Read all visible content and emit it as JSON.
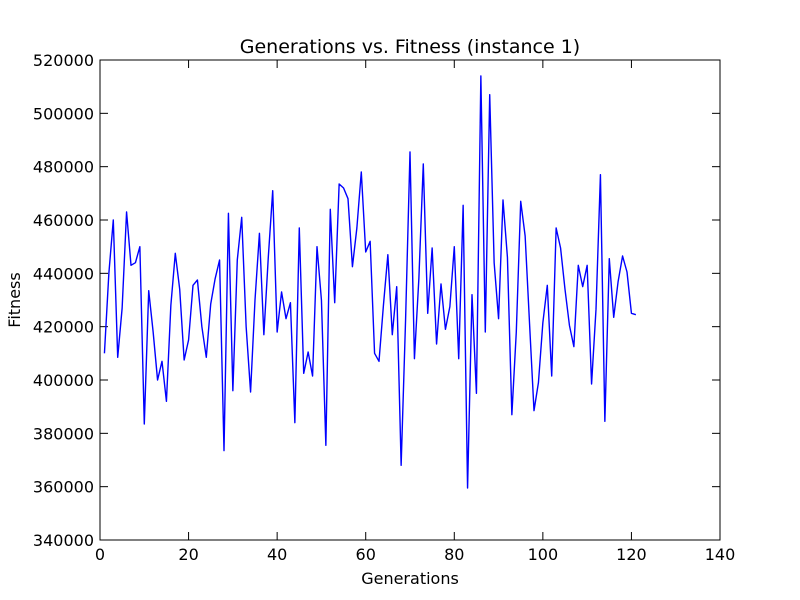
{
  "chart_data": {
    "type": "line",
    "title": "Generations vs. Fitness (instance 1)",
    "xlabel": "Generations",
    "ylabel": "Fitness",
    "xlim": [
      0,
      140
    ],
    "ylim": [
      340000,
      520000
    ],
    "xticks": [
      0,
      20,
      40,
      60,
      80,
      100,
      120,
      140
    ],
    "yticks": [
      340000,
      360000,
      380000,
      400000,
      420000,
      440000,
      460000,
      480000,
      500000,
      520000
    ],
    "grid": false,
    "legend": "none",
    "line_color": "#0000ff",
    "series": [
      {
        "x": [
          1,
          2,
          3,
          4,
          5,
          6,
          7,
          8,
          9,
          10,
          11,
          12,
          13,
          14,
          15,
          16,
          17,
          18,
          19,
          20,
          21,
          22,
          23,
          24,
          25,
          26,
          27,
          28,
          29,
          30,
          31,
          32,
          33,
          34,
          35,
          36,
          37,
          38,
          39,
          40,
          41,
          42,
          43,
          44,
          45,
          46,
          47,
          48,
          49,
          50,
          51,
          52,
          53,
          54,
          55,
          56,
          57,
          58,
          59,
          60,
          61,
          62,
          63,
          64,
          65,
          66,
          67,
          68,
          69,
          70,
          71,
          72,
          73,
          74,
          75,
          76,
          77,
          78,
          79,
          80,
          81,
          82,
          83,
          84,
          85,
          86,
          87,
          88,
          89,
          90,
          91,
          92,
          93,
          94,
          95,
          96,
          97,
          98,
          99,
          100,
          101,
          102,
          103,
          104,
          105,
          106,
          107,
          108,
          109,
          110,
          111,
          112,
          113,
          114,
          115,
          116,
          117,
          118,
          119,
          120,
          121
        ],
        "y": [
          410000,
          440000,
          460000,
          408500,
          427000,
          463000,
          443000,
          444000,
          450000,
          383500,
          433500,
          418000,
          400000,
          407000,
          392000,
          428000,
          447500,
          434000,
          407500,
          415000,
          435500,
          437500,
          420000,
          408500,
          428500,
          438000,
          445000,
          373500,
          462500,
          396000,
          445000,
          461000,
          420000,
          395500,
          430000,
          455000,
          417000,
          446000,
          471000,
          418000,
          433000,
          423000,
          429000,
          384000,
          457000,
          402500,
          410500,
          401500,
          450000,
          430000,
          375500,
          464000,
          429000,
          473500,
          472000,
          468000,
          442500,
          457000,
          478000,
          448000,
          452000,
          410000,
          407000,
          428000,
          447000,
          417000,
          435000,
          368000,
          422500,
          485500,
          408000,
          438000,
          481000,
          425000,
          449500,
          413500,
          436000,
          419000,
          427500,
          450000,
          408000,
          465500,
          359500,
          432000,
          395000,
          514000,
          418000,
          507000,
          444000,
          423000,
          467500,
          446000,
          387000,
          418000,
          467000,
          454000,
          421000,
          388500,
          399000,
          421500,
          435500,
          401500,
          457000,
          449500,
          434000,
          420500,
          412500,
          443000,
          435000,
          443000,
          398500,
          426500,
          477000,
          384500,
          445500,
          423500,
          437000,
          446500,
          440500,
          425000,
          424500
        ]
      }
    ]
  }
}
